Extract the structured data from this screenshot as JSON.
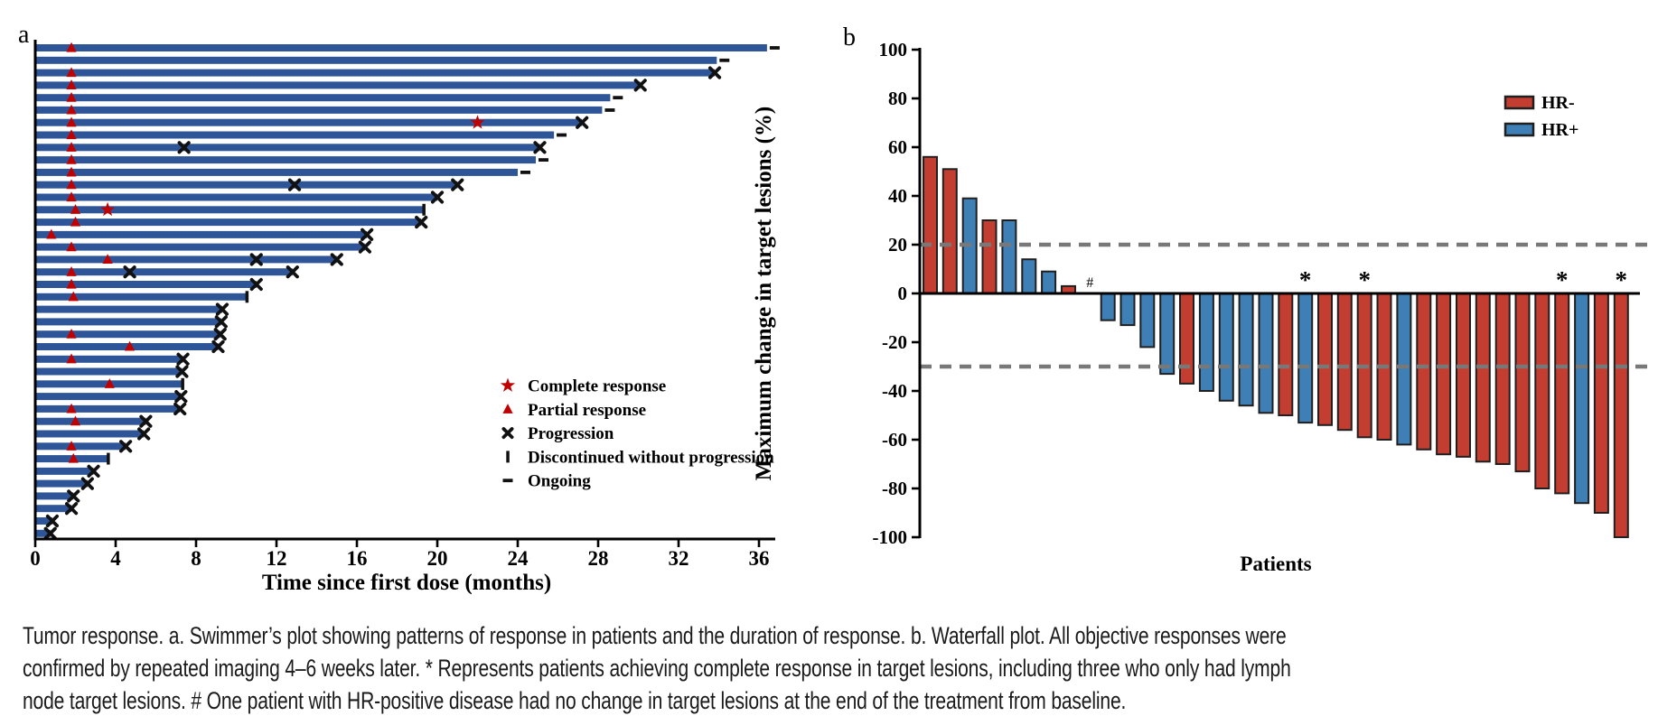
{
  "caption": {
    "lines": [
      "Tumor response. a. Swimmer’s plot showing patterns of response in patients and the duration of response. b. Waterfall plot. All objective responses were",
      "confirmed by repeated imaging 4–6 weeks later. * Represents patients achieving complete response in target lesions, including three who only had lymph",
      "node target lesions. # One patient with HR-positive disease had no change in target lesions at the end of the treatment from baseline."
    ]
  },
  "colors": {
    "swimmer_bar": "#2e5597",
    "response_red": "#c00000",
    "marker_black": "#111111",
    "hr_neg_red": "#c33d31",
    "hr_pos_blue": "#3e7fb5",
    "bar_outline": "#1f1f1f",
    "dashed_gray": "#787878",
    "axis_black": "#000000"
  },
  "chart_data": [
    {
      "type": "swimmer",
      "panel_label": "a",
      "x_axis": {
        "title": "Time since first dose (months)",
        "ticks": [
          0,
          4,
          8,
          12,
          16,
          20,
          24,
          28,
          32,
          36
        ],
        "min": 0,
        "max": 36.8
      },
      "legend": [
        {
          "symbol": "star",
          "label": "Complete response"
        },
        {
          "symbol": "triangle",
          "label": "Partial response"
        },
        {
          "symbol": "x",
          "label": "Progression"
        },
        {
          "symbol": "vbar",
          "label": "Discontinued without progression"
        },
        {
          "symbol": "dash",
          "label": "Ongoing"
        }
      ],
      "end_types": {
        "x": "progression",
        "o": "ongoing",
        "d": "discontinued-without-progression"
      },
      "patients": [
        {
          "e": 36.4,
          "t": "o",
          "m": [
            [
              "pr",
              1.8
            ]
          ]
        },
        {
          "e": 33.9,
          "t": "o",
          "m": []
        },
        {
          "e": 33.8,
          "t": "x",
          "m": [
            [
              "pr",
              1.8
            ]
          ]
        },
        {
          "e": 30.1,
          "t": "x",
          "m": [
            [
              "pr",
              1.8
            ]
          ]
        },
        {
          "e": 28.6,
          "t": "o",
          "m": [
            [
              "pr",
              1.8
            ]
          ]
        },
        {
          "e": 28.2,
          "t": "o",
          "m": [
            [
              "pr",
              1.8
            ]
          ]
        },
        {
          "e": 27.2,
          "t": "x",
          "m": [
            [
              "pr",
              1.8
            ],
            [
              "cr",
              22
            ]
          ]
        },
        {
          "e": 25.8,
          "t": "o",
          "m": [
            [
              "pr",
              1.8
            ]
          ]
        },
        {
          "e": 25.1,
          "t": "x",
          "m": [
            [
              "pr",
              1.8
            ],
            [
              "x",
              7.4
            ]
          ]
        },
        {
          "e": 24.9,
          "t": "o",
          "m": [
            [
              "pr",
              1.8
            ]
          ]
        },
        {
          "e": 24.0,
          "t": "o",
          "m": [
            [
              "pr",
              1.8
            ]
          ]
        },
        {
          "e": 21.0,
          "t": "x",
          "m": [
            [
              "pr",
              1.8
            ],
            [
              "x",
              12.9
            ]
          ]
        },
        {
          "e": 20.0,
          "t": "x",
          "m": [
            [
              "pr",
              1.8
            ]
          ]
        },
        {
          "e": 19.3,
          "t": "d",
          "m": [
            [
              "pr",
              2.0
            ],
            [
              "cr",
              3.6
            ]
          ]
        },
        {
          "e": 19.2,
          "t": "x",
          "m": [
            [
              "pr",
              2.0
            ]
          ]
        },
        {
          "e": 16.5,
          "t": "x",
          "m": [
            [
              "pr",
              0.8
            ]
          ]
        },
        {
          "e": 16.4,
          "t": "x",
          "m": [
            [
              "pr",
              1.8
            ]
          ]
        },
        {
          "e": 15.0,
          "t": "x",
          "m": [
            [
              "pr",
              3.6
            ],
            [
              "x",
              11.0
            ]
          ]
        },
        {
          "e": 12.8,
          "t": "x",
          "m": [
            [
              "pr",
              1.8
            ],
            [
              "x",
              4.7
            ]
          ]
        },
        {
          "e": 11.0,
          "t": "x",
          "m": [
            [
              "pr",
              1.8
            ]
          ]
        },
        {
          "e": 10.5,
          "t": "d",
          "m": [
            [
              "pr",
              1.9
            ]
          ]
        },
        {
          "e": 9.3,
          "t": "x",
          "m": []
        },
        {
          "e": 9.25,
          "t": "x",
          "m": []
        },
        {
          "e": 9.2,
          "t": "x",
          "m": [
            [
              "pr",
              1.8
            ]
          ]
        },
        {
          "e": 9.1,
          "t": "x",
          "m": [
            [
              "pr",
              4.7
            ]
          ]
        },
        {
          "e": 7.35,
          "t": "x",
          "m": [
            [
              "pr",
              1.8
            ]
          ]
        },
        {
          "e": 7.3,
          "t": "x",
          "m": []
        },
        {
          "e": 7.3,
          "t": "d",
          "m": [
            [
              "pr",
              3.7
            ]
          ]
        },
        {
          "e": 7.25,
          "t": "x",
          "m": []
        },
        {
          "e": 7.2,
          "t": "x",
          "m": [
            [
              "pr",
              1.8
            ]
          ]
        },
        {
          "e": 5.5,
          "t": "x",
          "m": [
            [
              "pr",
              2.0
            ]
          ]
        },
        {
          "e": 5.4,
          "t": "x",
          "m": []
        },
        {
          "e": 4.5,
          "t": "x",
          "m": [
            [
              "pr",
              1.8
            ]
          ]
        },
        {
          "e": 3.6,
          "t": "d",
          "m": [
            [
              "pr",
              1.9
            ]
          ]
        },
        {
          "e": 2.9,
          "t": "x",
          "m": []
        },
        {
          "e": 2.6,
          "t": "x",
          "m": []
        },
        {
          "e": 1.9,
          "t": "x",
          "m": []
        },
        {
          "e": 1.8,
          "t": "x",
          "m": []
        },
        {
          "e": 0.85,
          "t": "x",
          "m": []
        },
        {
          "e": 0.75,
          "t": "x",
          "m": []
        }
      ]
    },
    {
      "type": "waterfall",
      "panel_label": "b",
      "y_axis": {
        "title": "Maximum change in target lesions (%)",
        "ticks": [
          100,
          80,
          60,
          40,
          20,
          0,
          -20,
          -40,
          -60,
          -80,
          -100
        ],
        "min": -100,
        "max": 100
      },
      "x_axis": {
        "title": "Patients"
      },
      "reference_lines": [
        20,
        -30
      ],
      "legend": [
        {
          "label": "HR-",
          "hr": "neg"
        },
        {
          "label": "HR+",
          "hr": "pos"
        }
      ],
      "annotations": {
        "asterisk_note": "*",
        "hash_note": "#"
      },
      "bars": [
        {
          "v": 56,
          "hr": "neg"
        },
        {
          "v": 51,
          "hr": "neg"
        },
        {
          "v": 39,
          "hr": "pos"
        },
        {
          "v": 30,
          "hr": "neg"
        },
        {
          "v": 30,
          "hr": "pos"
        },
        {
          "v": 14,
          "hr": "pos"
        },
        {
          "v": 9,
          "hr": "pos"
        },
        {
          "v": 3,
          "hr": "neg"
        },
        {
          "v": 0,
          "hr": "pos",
          "mark": "#"
        },
        {
          "v": -11,
          "hr": "pos"
        },
        {
          "v": -13,
          "hr": "pos"
        },
        {
          "v": -22,
          "hr": "pos"
        },
        {
          "v": -33,
          "hr": "pos"
        },
        {
          "v": -37,
          "hr": "neg"
        },
        {
          "v": -40,
          "hr": "pos"
        },
        {
          "v": -44,
          "hr": "pos"
        },
        {
          "v": -46,
          "hr": "pos"
        },
        {
          "v": -49,
          "hr": "pos"
        },
        {
          "v": -50,
          "hr": "neg"
        },
        {
          "v": -53,
          "hr": "pos",
          "mark": "*"
        },
        {
          "v": -54,
          "hr": "neg"
        },
        {
          "v": -56,
          "hr": "neg"
        },
        {
          "v": -59,
          "hr": "neg",
          "mark": "*"
        },
        {
          "v": -60,
          "hr": "neg"
        },
        {
          "v": -62,
          "hr": "pos"
        },
        {
          "v": -64,
          "hr": "neg"
        },
        {
          "v": -66,
          "hr": "neg"
        },
        {
          "v": -67,
          "hr": "neg"
        },
        {
          "v": -69,
          "hr": "neg"
        },
        {
          "v": -70,
          "hr": "neg"
        },
        {
          "v": -73,
          "hr": "neg"
        },
        {
          "v": -80,
          "hr": "neg"
        },
        {
          "v": -82,
          "hr": "neg",
          "mark": "*"
        },
        {
          "v": -86,
          "hr": "pos"
        },
        {
          "v": -90,
          "hr": "neg"
        },
        {
          "v": -100,
          "hr": "neg",
          "mark": "*"
        }
      ]
    }
  ]
}
